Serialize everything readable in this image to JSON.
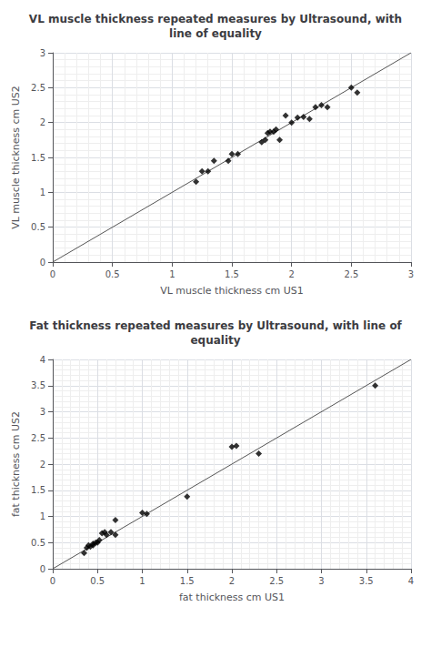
{
  "chart_data": [
    {
      "type": "scatter",
      "title": "VL muscle thickness repeated measures by Ultrasound, with\nline of equality",
      "xlabel": "VL muscle thickness cm US1",
      "ylabel": "VL muscle thickness cm US2",
      "xlim": [
        0,
        3
      ],
      "ylim": [
        0,
        3
      ],
      "xticks": [
        0,
        0.5,
        1,
        1.5,
        2,
        2.5,
        3
      ],
      "yticks": [
        0,
        0.5,
        1,
        1.5,
        2,
        2.5,
        3
      ],
      "grid": true,
      "series": [
        {
          "type": "scatter",
          "marker": "diamond",
          "color": "#000000",
          "x": [
            1.2,
            1.25,
            1.3,
            1.35,
            1.47,
            1.5,
            1.55,
            1.75,
            1.78,
            1.8,
            1.82,
            1.85,
            1.87,
            1.9,
            1.95,
            2.0,
            2.05,
            2.1,
            2.15,
            2.2,
            2.25,
            2.3,
            2.5,
            2.55
          ],
          "values": [
            1.15,
            1.3,
            1.3,
            1.45,
            1.45,
            1.55,
            1.55,
            1.72,
            1.75,
            1.85,
            1.87,
            1.87,
            1.9,
            1.75,
            2.1,
            2.0,
            2.07,
            2.08,
            2.05,
            2.22,
            2.25,
            2.22,
            2.5,
            2.43
          ]
        },
        {
          "type": "line",
          "line_style": "solid",
          "color": "#555555",
          "x": [
            0,
            3
          ],
          "values": [
            0,
            3
          ]
        }
      ]
    },
    {
      "type": "scatter",
      "title": "Fat thickness repeated measures by Ultrasound, with line of\nequality",
      "xlabel": "fat thickness cm US1",
      "ylabel": "fat thickness cm US2",
      "xlim": [
        0,
        4
      ],
      "ylim": [
        0,
        4
      ],
      "xticks": [
        0,
        0.5,
        1,
        1.5,
        2,
        2.5,
        3,
        3.5,
        4
      ],
      "yticks": [
        0,
        0.5,
        1,
        1.5,
        2,
        2.5,
        3,
        3.5,
        4
      ],
      "grid": true,
      "series": [
        {
          "type": "scatter",
          "marker": "diamond",
          "color": "#000000",
          "x": [
            0.35,
            0.38,
            0.4,
            0.42,
            0.45,
            0.45,
            0.48,
            0.5,
            0.52,
            0.55,
            0.58,
            0.6,
            0.65,
            0.7,
            0.7,
            1.0,
            1.05,
            1.5,
            2.0,
            2.05,
            2.3,
            3.6
          ],
          "values": [
            0.3,
            0.4,
            0.45,
            0.42,
            0.45,
            0.48,
            0.5,
            0.5,
            0.55,
            0.68,
            0.7,
            0.65,
            0.7,
            0.65,
            0.93,
            1.07,
            1.05,
            1.38,
            2.33,
            2.35,
            2.2,
            3.5
          ]
        },
        {
          "type": "line",
          "line_style": "solid",
          "color": "#555555",
          "x": [
            0,
            4
          ],
          "values": [
            0,
            4
          ]
        }
      ]
    }
  ]
}
